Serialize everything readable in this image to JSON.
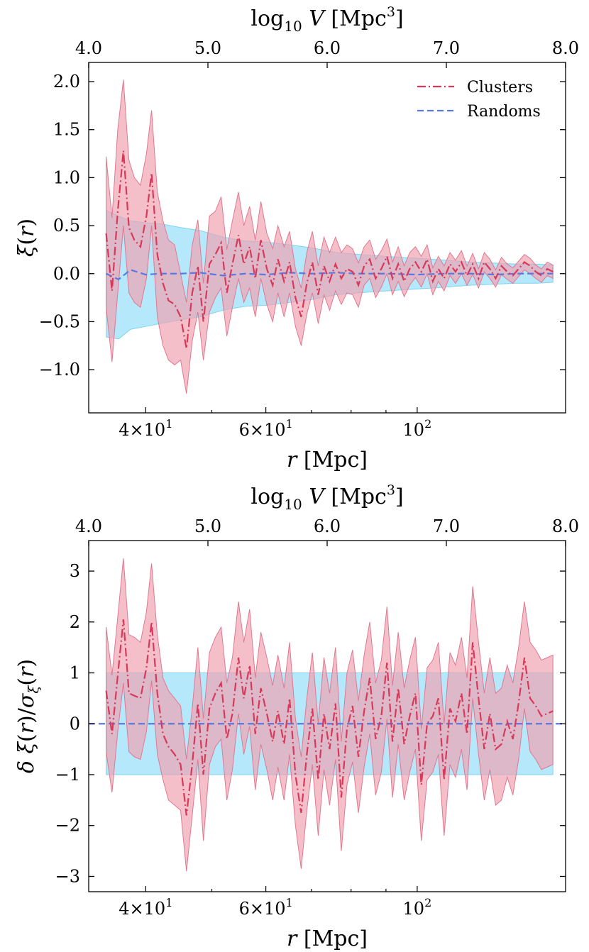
{
  "chart_data": [
    {
      "type": "line",
      "xlabel": "r [Mpc]",
      "top_xlabel": "log10 V [Mpc^3]",
      "ylabel": "ξ(r)",
      "x_scale": "log",
      "xlim": [
        33,
        165
      ],
      "ylim": [
        -1.45,
        2.2
      ],
      "xticks": [
        {
          "value": 40,
          "base": "4",
          "exp": "1"
        },
        {
          "value": 60,
          "base": "6",
          "exp": "1"
        },
        {
          "value": 100,
          "base": "10",
          "exp": "2"
        }
      ],
      "top_xticks": [
        "4.0",
        "5.0",
        "6.0",
        "7.0",
        "8.0"
      ],
      "yticks": [
        "−1.0",
        "−0.5",
        "0.0",
        "0.5",
        "1.0",
        "1.5",
        "2.0"
      ],
      "ytick_values": [
        -1.0,
        -0.5,
        0.0,
        0.5,
        1.0,
        1.5,
        2.0
      ],
      "legend_position": "top-right",
      "series": [
        {
          "name": "Clusters",
          "style": "dash-dot",
          "color": "#d8385a",
          "band_color": "#f0a0b0",
          "x": [
            35.0,
            35.7,
            36.4,
            37.1,
            37.8,
            38.5,
            39.3,
            40.1,
            40.8,
            41.6,
            42.4,
            43.2,
            44.1,
            45.0,
            45.9,
            46.8,
            47.7,
            48.6,
            49.6,
            50.6,
            51.6,
            52.6,
            53.6,
            54.7,
            55.7,
            56.8,
            57.9,
            59.0,
            60.2,
            61.4,
            62.5,
            63.8,
            65.0,
            66.3,
            67.6,
            68.9,
            70.2,
            71.6,
            73.0,
            74.4,
            75.9,
            77.4,
            78.9,
            80.4,
            82.0,
            83.6,
            85.2,
            86.9,
            88.6,
            90.3,
            92.0,
            93.8,
            95.7,
            97.5,
            99.4,
            101.4,
            103.4,
            105.4,
            107.4,
            109.5,
            111.7,
            113.8,
            116.1,
            118.3,
            120.6,
            123.0,
            125.4,
            127.8,
            130.3,
            132.9,
            135.5,
            138.1,
            140.8,
            143.6,
            146.4,
            149.2,
            152.1,
            155.1,
            158.1
          ],
          "y": [
            0.42,
            -0.18,
            0.65,
            1.28,
            0.48,
            0.35,
            0.28,
            0.6,
            1.05,
            0.2,
            -0.1,
            -0.28,
            -0.32,
            -0.45,
            -0.78,
            -0.2,
            0.08,
            -0.5,
            0.1,
            0.2,
            0.32,
            -0.2,
            0.1,
            0.4,
            0.1,
            0.28,
            -0.05,
            0.35,
            0.05,
            -0.12,
            0.15,
            -0.08,
            0.12,
            -0.25,
            -0.45,
            -0.1,
            0.12,
            -0.22,
            0.08,
            -0.08,
            0.1,
            -0.05,
            0.05,
            0.02,
            -0.12,
            0.08,
            0.15,
            -0.05,
            0.05,
            0.18,
            -0.05,
            0.1,
            -0.08,
            0.05,
            0.12,
            0.02,
            0.15,
            -0.08,
            0.05,
            -0.05,
            0.1,
            0.02,
            0.12,
            -0.02,
            0.1,
            -0.05,
            0.12,
            0.05,
            -0.05,
            0.08,
            0.02,
            -0.02,
            0.05,
            0.12,
            0.08,
            0.02,
            -0.02,
            0.05,
            0.02
          ],
          "lower": [
            -0.35,
            -0.92,
            -0.2,
            0.5,
            -0.2,
            -0.3,
            -0.35,
            -0.05,
            0.5,
            -0.45,
            -0.75,
            -0.9,
            -0.95,
            -0.9,
            -1.25,
            -0.7,
            -0.4,
            -0.9,
            -0.4,
            -0.25,
            -0.15,
            -0.65,
            -0.35,
            -0.05,
            -0.3,
            -0.15,
            -0.45,
            -0.05,
            -0.32,
            -0.5,
            -0.2,
            -0.45,
            -0.2,
            -0.55,
            -0.75,
            -0.42,
            -0.2,
            -0.52,
            -0.22,
            -0.38,
            -0.18,
            -0.32,
            -0.2,
            -0.22,
            -0.35,
            -0.12,
            -0.05,
            -0.25,
            -0.14,
            0.0,
            -0.22,
            -0.08,
            -0.24,
            -0.12,
            -0.04,
            -0.14,
            0.0,
            -0.22,
            -0.08,
            -0.18,
            -0.02,
            -0.1,
            0.0,
            -0.12,
            -0.01,
            -0.15,
            0.02,
            -0.05,
            -0.14,
            -0.01,
            -0.06,
            -0.1,
            -0.03,
            0.04,
            0.0,
            -0.05,
            -0.09,
            -0.02,
            -0.05
          ],
          "upper": [
            1.22,
            0.58,
            1.5,
            2.02,
            1.18,
            1.0,
            0.92,
            1.25,
            1.7,
            0.85,
            0.55,
            0.35,
            0.3,
            0.0,
            -0.3,
            0.3,
            0.56,
            -0.1,
            0.6,
            0.65,
            0.8,
            0.25,
            0.55,
            0.85,
            0.5,
            0.7,
            0.35,
            0.75,
            0.42,
            0.26,
            0.5,
            0.28,
            0.44,
            0.05,
            -0.15,
            0.22,
            0.44,
            0.08,
            0.38,
            0.22,
            0.38,
            0.22,
            0.3,
            0.26,
            0.11,
            0.28,
            0.35,
            0.15,
            0.24,
            0.36,
            0.12,
            0.28,
            0.08,
            0.22,
            0.28,
            0.18,
            0.3,
            0.06,
            0.18,
            0.08,
            0.22,
            0.14,
            0.24,
            0.08,
            0.21,
            0.05,
            0.22,
            0.15,
            0.04,
            0.17,
            0.1,
            0.06,
            0.13,
            0.2,
            0.16,
            0.09,
            0.05,
            0.12,
            0.09
          ]
        },
        {
          "name": "Randoms",
          "style": "dashed",
          "color": "#5a78e0",
          "band_color": "#a8e4fa",
          "x": [
            35.0,
            36.5,
            38.0,
            40.0,
            42.0,
            45.0,
            48.0,
            52.0,
            56.0,
            60.0,
            65.0,
            70.0,
            76.0,
            82.0,
            90.0,
            100.0,
            110.0,
            120.0,
            130.0,
            140.0,
            150.0,
            158.1
          ],
          "y": [
            0.0,
            -0.06,
            0.04,
            -0.01,
            0.0,
            0.0,
            0.01,
            -0.02,
            0.0,
            -0.01,
            0.01,
            0.0,
            0.01,
            0.0,
            0.0,
            -0.01,
            0.0,
            0.0,
            -0.01,
            0.0,
            0.0,
            0.0
          ],
          "lower": [
            -0.66,
            -0.68,
            -0.58,
            -0.55,
            -0.52,
            -0.48,
            -0.45,
            -0.38,
            -0.34,
            -0.33,
            -0.3,
            -0.27,
            -0.22,
            -0.2,
            -0.18,
            -0.16,
            -0.14,
            -0.12,
            -0.11,
            -0.1,
            -0.1,
            -0.09
          ],
          "upper": [
            0.66,
            0.6,
            0.55,
            0.53,
            0.52,
            0.48,
            0.45,
            0.38,
            0.34,
            0.33,
            0.3,
            0.27,
            0.22,
            0.2,
            0.18,
            0.16,
            0.14,
            0.12,
            0.11,
            0.1,
            0.1,
            0.09
          ]
        }
      ]
    },
    {
      "type": "line",
      "xlabel": "r [Mpc]",
      "top_xlabel": "log10 V [Mpc^3]",
      "ylabel": "δ ξ(r) / σ_ξ(r)",
      "x_scale": "log",
      "xlim": [
        33,
        165
      ],
      "ylim": [
        -3.3,
        3.6
      ],
      "xticks": [
        {
          "value": 40,
          "base": "4",
          "exp": "1"
        },
        {
          "value": 60,
          "base": "6",
          "exp": "1"
        },
        {
          "value": 100,
          "base": "10",
          "exp": "2"
        }
      ],
      "top_xticks": [
        "4.0",
        "5.0",
        "6.0",
        "7.0",
        "8.0"
      ],
      "yticks": [
        "−3",
        "−2",
        "−1",
        "0",
        "1",
        "2",
        "3"
      ],
      "ytick_values": [
        -3,
        -2,
        -1,
        0,
        1,
        2,
        3
      ],
      "series": [
        {
          "style": "dash-dot",
          "color": "#d8385a",
          "band_color": "#f0a0b0",
          "x": [
            35.0,
            35.7,
            36.4,
            37.1,
            37.8,
            38.5,
            39.3,
            40.1,
            40.8,
            41.6,
            42.4,
            43.2,
            44.1,
            45.0,
            45.9,
            46.8,
            47.7,
            48.6,
            49.6,
            50.6,
            51.6,
            52.6,
            53.6,
            54.7,
            55.7,
            56.8,
            57.9,
            59.0,
            60.2,
            61.4,
            62.5,
            63.8,
            65.0,
            66.3,
            67.6,
            68.9,
            70.2,
            71.6,
            73.0,
            74.4,
            75.9,
            77.4,
            78.9,
            80.4,
            82.0,
            83.6,
            85.2,
            86.9,
            88.6,
            90.3,
            92.0,
            93.8,
            95.7,
            97.5,
            99.4,
            101.4,
            103.4,
            105.4,
            107.4,
            109.5,
            111.7,
            113.8,
            116.1,
            118.3,
            120.6,
            123.0,
            125.4,
            127.8,
            130.3,
            132.9,
            135.5,
            138.1,
            140.8,
            143.6,
            146.4,
            149.2,
            152.1,
            155.1,
            158.1
          ],
          "y": [
            0.65,
            -0.2,
            0.95,
            2.05,
            0.6,
            0.55,
            0.5,
            1.1,
            2.0,
            0.6,
            -0.2,
            -0.45,
            -0.6,
            -0.8,
            -1.8,
            -0.8,
            0.4,
            -1.0,
            0.3,
            0.6,
            0.8,
            -0.3,
            0.2,
            1.3,
            0.5,
            1.15,
            -0.2,
            0.7,
            0.2,
            -0.35,
            0.25,
            -0.4,
            0.5,
            -1.0,
            -1.75,
            -0.6,
            0.3,
            -1.1,
            0.2,
            -0.5,
            0.4,
            -1.45,
            -0.1,
            0.35,
            -0.65,
            0.25,
            0.9,
            -0.3,
            0.15,
            1.2,
            -0.35,
            0.7,
            -0.4,
            0.15,
            0.6,
            -1.2,
            0.0,
            0.15,
            0.5,
            -1.1,
            0.3,
            0.05,
            0.6,
            -0.2,
            1.6,
            0.5,
            -0.5,
            0.2,
            -0.5,
            -0.4,
            0.05,
            -0.3,
            0.4,
            1.3,
            0.5,
            0.35,
            0.15,
            0.2,
            0.25
          ],
          "lower": [
            -0.55,
            -1.35,
            -0.15,
            0.8,
            -0.55,
            -0.65,
            -0.7,
            -0.15,
            0.85,
            -0.6,
            -1.1,
            -1.5,
            -1.6,
            -1.7,
            -2.9,
            -1.8,
            -0.7,
            -2.3,
            -0.8,
            -0.45,
            -0.3,
            -1.5,
            -0.9,
            0.2,
            -0.6,
            -0.05,
            -1.3,
            -0.4,
            -0.9,
            -1.5,
            -0.85,
            -1.5,
            -0.6,
            -2.0,
            -2.85,
            -1.7,
            -0.8,
            -2.2,
            -0.9,
            -1.6,
            -0.7,
            -2.5,
            -1.2,
            -0.75,
            -1.75,
            -0.85,
            -0.2,
            -1.4,
            -0.95,
            0.1,
            -1.45,
            -0.4,
            -1.5,
            -0.95,
            -0.5,
            -2.3,
            -1.1,
            -0.95,
            -0.6,
            -2.2,
            -0.8,
            -1.05,
            -0.5,
            -1.3,
            0.5,
            -0.6,
            -1.5,
            -0.9,
            -1.6,
            -1.5,
            -1.05,
            -1.4,
            -0.7,
            0.3,
            -0.55,
            -0.7,
            -0.9,
            -0.85,
            -0.8
          ],
          "upper": [
            1.9,
            0.95,
            2.1,
            3.25,
            1.75,
            1.7,
            1.6,
            2.2,
            3.15,
            1.75,
            0.9,
            0.65,
            0.5,
            0.35,
            -0.7,
            0.3,
            1.5,
            0.1,
            1.4,
            1.7,
            1.9,
            0.8,
            1.3,
            2.4,
            1.6,
            2.25,
            0.9,
            1.8,
            1.3,
            0.75,
            1.35,
            0.7,
            1.6,
            0.1,
            -0.65,
            0.5,
            1.4,
            0.0,
            1.3,
            0.6,
            1.5,
            -0.35,
            1.0,
            1.45,
            0.45,
            1.35,
            2.0,
            0.8,
            1.25,
            2.3,
            0.75,
            1.8,
            0.7,
            1.25,
            1.7,
            -0.1,
            1.1,
            1.25,
            1.6,
            0.0,
            1.4,
            1.15,
            1.7,
            0.9,
            2.7,
            1.6,
            0.6,
            1.3,
            0.6,
            0.7,
            1.15,
            0.8,
            1.5,
            2.4,
            1.6,
            1.45,
            1.25,
            1.3,
            1.35
          ]
        },
        {
          "style": "dashed",
          "color": "#5a78e0",
          "band_color": "#a8e4fa",
          "x": [
            33,
            165
          ],
          "y": [
            0,
            0
          ],
          "band_x": [
            35.0,
            158.1
          ],
          "lower": [
            -1,
            -1
          ],
          "upper": [
            1,
            1
          ]
        }
      ]
    }
  ]
}
